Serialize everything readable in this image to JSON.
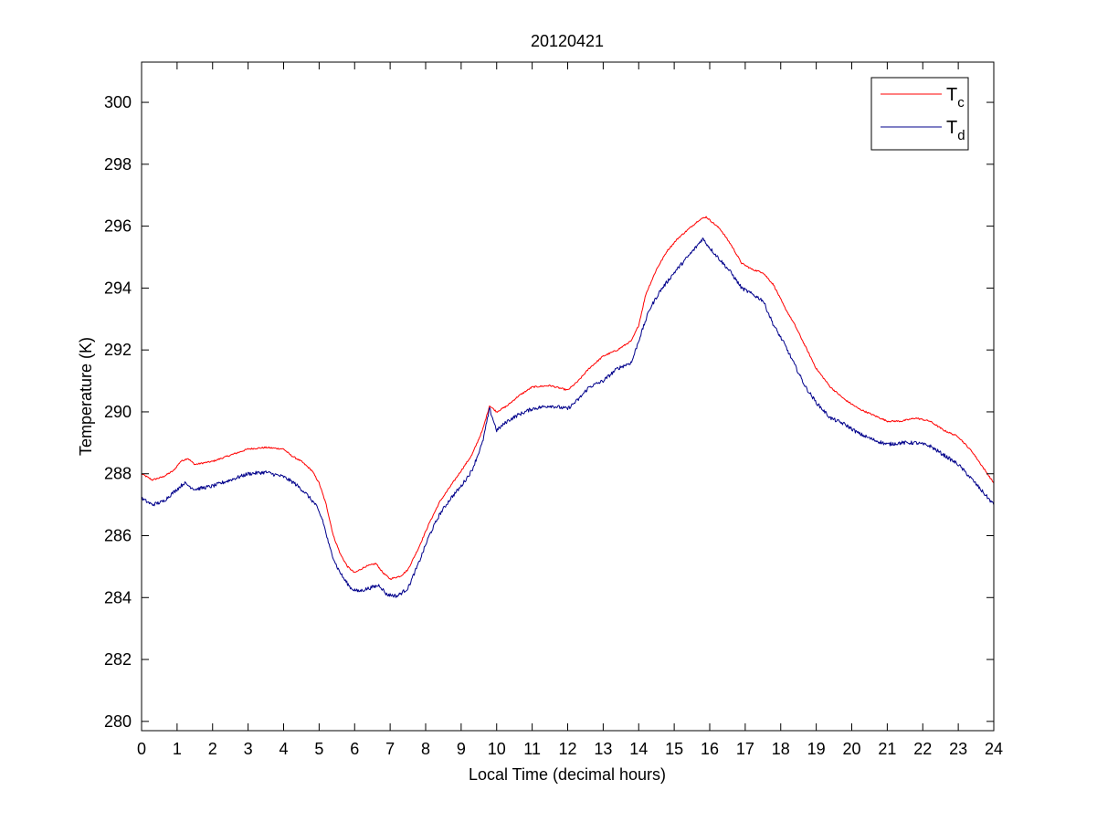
{
  "chart_data": {
    "type": "line",
    "title": "20120421",
    "xlabel": "Local Time (decimal hours)",
    "ylabel": "Temperature (K)",
    "xlim": [
      0,
      24
    ],
    "ylim": [
      279.7,
      301.3
    ],
    "xticks": [
      0,
      1,
      2,
      3,
      4,
      5,
      6,
      7,
      8,
      9,
      10,
      11,
      12,
      13,
      14,
      15,
      16,
      17,
      18,
      19,
      20,
      21,
      22,
      23,
      24
    ],
    "yticks": [
      280,
      282,
      284,
      286,
      288,
      290,
      292,
      294,
      296,
      298,
      300
    ],
    "grid": false,
    "legend_position": "top-right",
    "legend": [
      {
        "base": "T",
        "sub": "c",
        "color": "#ff0000"
      },
      {
        "base": "T",
        "sub": "d",
        "color": "#00008b"
      }
    ],
    "series": [
      {
        "name": "Tc",
        "color": "#ff0000",
        "points": [
          [
            0,
            288.0
          ],
          [
            0.3,
            287.8
          ],
          [
            0.6,
            287.9
          ],
          [
            0.9,
            288.1
          ],
          [
            1.1,
            288.4
          ],
          [
            1.3,
            288.5
          ],
          [
            1.5,
            288.3
          ],
          [
            2,
            288.4
          ],
          [
            2.5,
            288.6
          ],
          [
            3,
            288.8
          ],
          [
            3.5,
            288.85
          ],
          [
            4,
            288.8
          ],
          [
            4.2,
            288.6
          ],
          [
            4.5,
            288.4
          ],
          [
            4.8,
            288.1
          ],
          [
            5.0,
            287.7
          ],
          [
            5.2,
            287.0
          ],
          [
            5.4,
            286.0
          ],
          [
            5.6,
            285.4
          ],
          [
            5.8,
            285.0
          ],
          [
            6.0,
            284.8
          ],
          [
            6.3,
            285.0
          ],
          [
            6.6,
            285.1
          ],
          [
            6.8,
            284.8
          ],
          [
            7.0,
            284.6
          ],
          [
            7.3,
            284.7
          ],
          [
            7.5,
            284.9
          ],
          [
            7.8,
            285.6
          ],
          [
            8.1,
            286.4
          ],
          [
            8.4,
            287.1
          ],
          [
            8.7,
            287.6
          ],
          [
            9.0,
            288.1
          ],
          [
            9.3,
            288.6
          ],
          [
            9.6,
            289.4
          ],
          [
            9.8,
            290.2
          ],
          [
            10.0,
            290.0
          ],
          [
            10.3,
            290.2
          ],
          [
            10.6,
            290.5
          ],
          [
            11.0,
            290.8
          ],
          [
            11.5,
            290.85
          ],
          [
            12.0,
            290.7
          ],
          [
            12.3,
            291.0
          ],
          [
            12.6,
            291.4
          ],
          [
            13.0,
            291.8
          ],
          [
            13.4,
            292.0
          ],
          [
            13.8,
            292.3
          ],
          [
            14.0,
            292.8
          ],
          [
            14.2,
            293.8
          ],
          [
            14.5,
            294.6
          ],
          [
            14.8,
            295.2
          ],
          [
            15.1,
            295.6
          ],
          [
            15.4,
            295.9
          ],
          [
            15.7,
            296.2
          ],
          [
            15.9,
            296.3
          ],
          [
            16.1,
            296.1
          ],
          [
            16.3,
            295.9
          ],
          [
            16.6,
            295.4
          ],
          [
            16.9,
            294.8
          ],
          [
            17.2,
            294.6
          ],
          [
            17.5,
            294.5
          ],
          [
            17.8,
            294.1
          ],
          [
            18.1,
            293.4
          ],
          [
            18.4,
            292.8
          ],
          [
            18.7,
            292.1
          ],
          [
            19.0,
            291.4
          ],
          [
            19.4,
            290.8
          ],
          [
            19.8,
            290.4
          ],
          [
            20.2,
            290.1
          ],
          [
            20.6,
            289.9
          ],
          [
            21.0,
            289.7
          ],
          [
            21.4,
            289.7
          ],
          [
            21.8,
            289.8
          ],
          [
            22.2,
            289.7
          ],
          [
            22.6,
            289.4
          ],
          [
            23.0,
            289.2
          ],
          [
            23.4,
            288.7
          ],
          [
            23.7,
            288.2
          ],
          [
            24.0,
            287.7
          ]
        ]
      },
      {
        "name": "Td",
        "color": "#00008b",
        "points": [
          [
            0,
            287.2
          ],
          [
            0.3,
            287.0
          ],
          [
            0.6,
            287.1
          ],
          [
            0.9,
            287.4
          ],
          [
            1.2,
            287.7
          ],
          [
            1.5,
            287.5
          ],
          [
            2.0,
            287.6
          ],
          [
            2.5,
            287.8
          ],
          [
            3.0,
            288.0
          ],
          [
            3.5,
            288.05
          ],
          [
            4.0,
            287.9
          ],
          [
            4.3,
            287.7
          ],
          [
            4.6,
            287.4
          ],
          [
            4.9,
            287.0
          ],
          [
            5.1,
            286.5
          ],
          [
            5.3,
            285.6
          ],
          [
            5.5,
            285.0
          ],
          [
            5.7,
            284.6
          ],
          [
            5.9,
            284.3
          ],
          [
            6.1,
            284.2
          ],
          [
            6.4,
            284.3
          ],
          [
            6.7,
            284.4
          ],
          [
            6.9,
            284.1
          ],
          [
            7.2,
            284.05
          ],
          [
            7.5,
            284.3
          ],
          [
            7.8,
            285.1
          ],
          [
            8.1,
            286.0
          ],
          [
            8.4,
            286.7
          ],
          [
            8.7,
            287.2
          ],
          [
            9.0,
            287.6
          ],
          [
            9.3,
            288.1
          ],
          [
            9.6,
            289.0
          ],
          [
            9.8,
            290.1
          ],
          [
            10.0,
            289.4
          ],
          [
            10.3,
            289.7
          ],
          [
            10.6,
            289.9
          ],
          [
            11.0,
            290.1
          ],
          [
            11.5,
            290.2
          ],
          [
            12.0,
            290.1
          ],
          [
            12.3,
            290.4
          ],
          [
            12.6,
            290.8
          ],
          [
            13.0,
            291.0
          ],
          [
            13.4,
            291.4
          ],
          [
            13.8,
            291.6
          ],
          [
            14.0,
            292.3
          ],
          [
            14.3,
            293.3
          ],
          [
            14.6,
            293.9
          ],
          [
            15.0,
            294.5
          ],
          [
            15.3,
            294.9
          ],
          [
            15.6,
            295.3
          ],
          [
            15.8,
            295.6
          ],
          [
            16.0,
            295.3
          ],
          [
            16.3,
            294.9
          ],
          [
            16.6,
            294.5
          ],
          [
            16.9,
            294.0
          ],
          [
            17.2,
            293.8
          ],
          [
            17.5,
            293.6
          ],
          [
            17.8,
            292.8
          ],
          [
            18.1,
            292.2
          ],
          [
            18.4,
            291.5
          ],
          [
            18.7,
            290.8
          ],
          [
            19.0,
            290.3
          ],
          [
            19.4,
            289.8
          ],
          [
            19.8,
            289.6
          ],
          [
            20.2,
            289.3
          ],
          [
            20.6,
            289.1
          ],
          [
            21.0,
            288.95
          ],
          [
            21.4,
            289.0
          ],
          [
            21.8,
            289.0
          ],
          [
            22.2,
            288.9
          ],
          [
            22.6,
            288.6
          ],
          [
            23.0,
            288.3
          ],
          [
            23.4,
            287.8
          ],
          [
            23.7,
            287.4
          ],
          [
            24.0,
            287.0
          ]
        ]
      }
    ]
  }
}
